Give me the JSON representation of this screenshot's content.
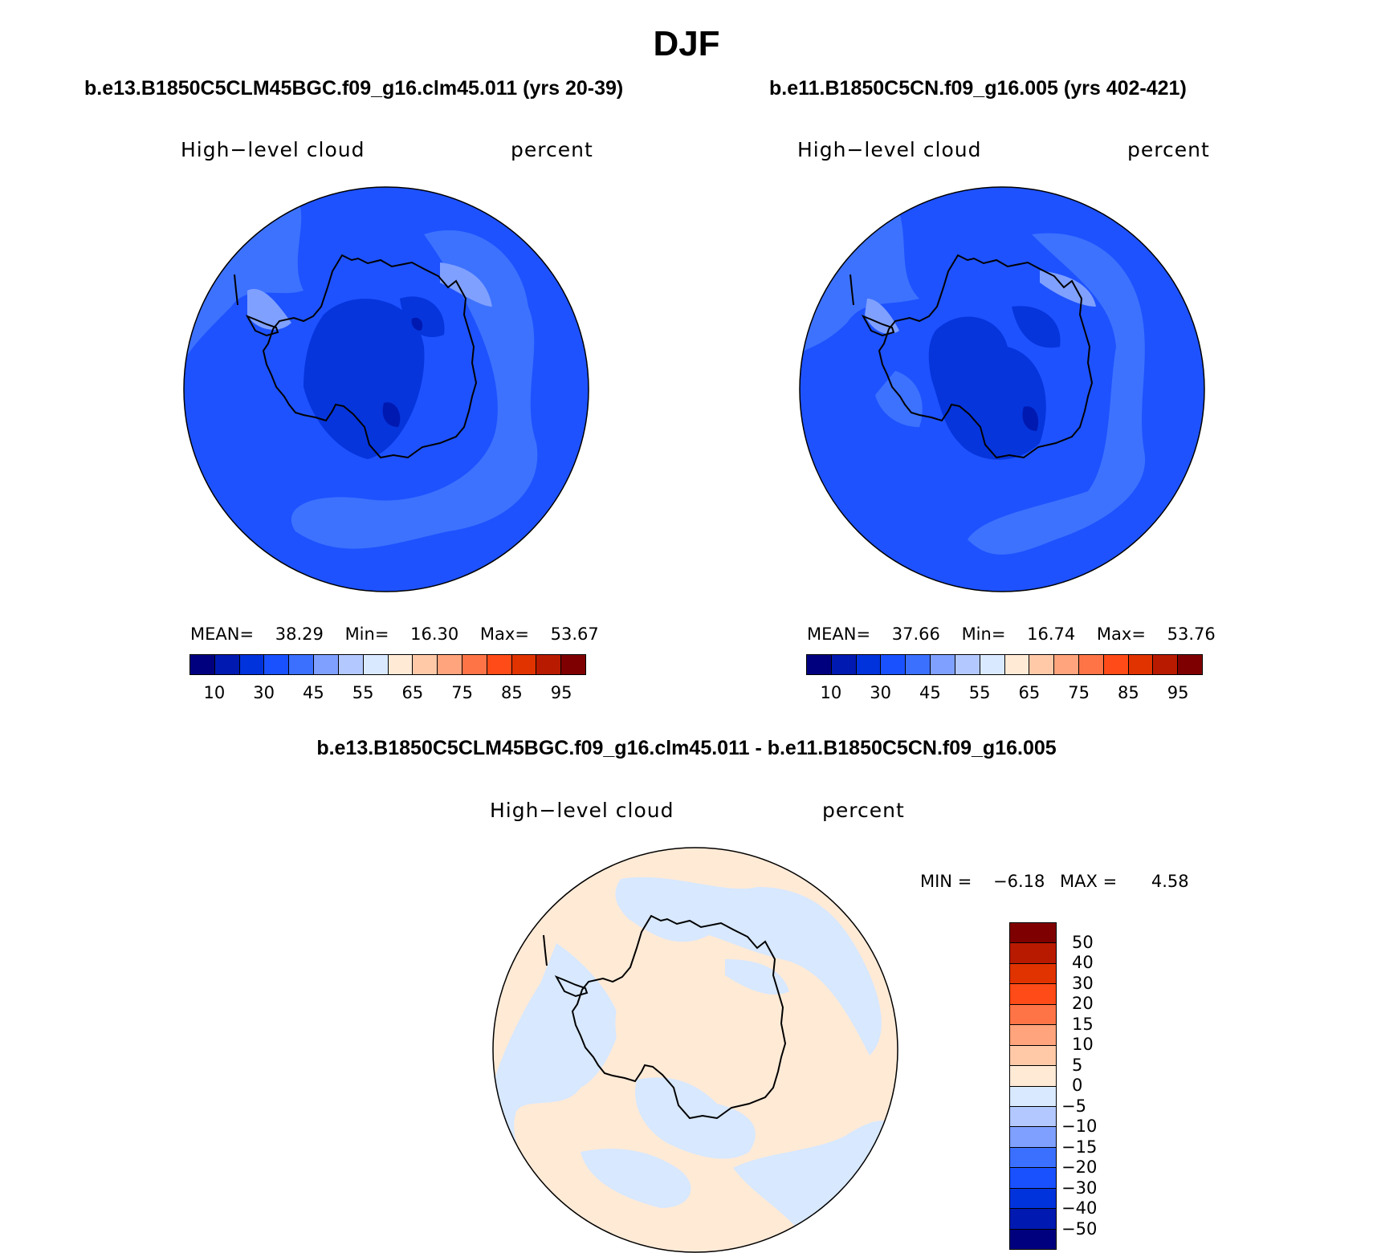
{
  "title": "DJF",
  "colors": {
    "abs_scale": [
      "#00007f",
      "#0019b0",
      "#0033dc",
      "#1a51ff",
      "#3b70ff",
      "#7fa0ff",
      "#b3c8ff",
      "#d9e9ff",
      "#ffead6",
      "#ffc9a8",
      "#ffa47c",
      "#ff7447",
      "#ff4b17",
      "#e03300",
      "#b81a00",
      "#7f0000"
    ],
    "diff_scale": [
      "#7f0000",
      "#b81a00",
      "#e03300",
      "#ff4b17",
      "#ff7447",
      "#ffa47c",
      "#ffc9a8",
      "#ffead6",
      "#d9e9ff",
      "#b3c8ff",
      "#7fa0ff",
      "#3b70ff",
      "#1a51ff",
      "#0033dc",
      "#0019b0",
      "#00007f"
    ],
    "field_base": "#1e52ff",
    "field_light": "#3d72ff",
    "field_lighter": "#7fa0ff",
    "field_dark": "#0635dc",
    "field_darker": "#0019b0",
    "diff_base": "#ffead6",
    "diff_neg": "#d7e8ff"
  },
  "panels": [
    {
      "case_title": "b.e13.B1850C5CLM45BGC.f09_g16.clm45.011 (yrs 20-39)",
      "variable": "High−level cloud",
      "units": "percent",
      "mean_label": "MEAN=",
      "mean": "38.29",
      "min_label": "Min=",
      "min": "16.30",
      "max_label": "Max=",
      "max": "53.67",
      "ticks": [
        "10",
        "30",
        "45",
        "55",
        "65",
        "75",
        "85",
        "95"
      ]
    },
    {
      "case_title": "b.e11.B1850C5CN.f09_g16.005 (yrs 402-421)",
      "variable": "High−level cloud",
      "units": "percent",
      "mean_label": "MEAN=",
      "mean": "37.66",
      "min_label": "Min=",
      "min": "16.74",
      "max_label": "Max=",
      "max": "53.76",
      "ticks": [
        "10",
        "30",
        "45",
        "55",
        "65",
        "75",
        "85",
        "95"
      ]
    }
  ],
  "diff": {
    "case_title": "b.e13.B1850C5CLM45BGC.f09_g16.clm45.011 - b.e11.B1850C5CN.f09_g16.005",
    "variable": "High−level cloud",
    "units": "percent",
    "min_label": "MIN =",
    "min": "−6.18",
    "max_label": "MAX =",
    "max": "4.58",
    "ticks": [
      "50",
      "40",
      "30",
      "20",
      "15",
      "10",
      "5",
      "0",
      "−5",
      "−10",
      "−15",
      "−20",
      "−30",
      "−40",
      "−50"
    ]
  }
}
